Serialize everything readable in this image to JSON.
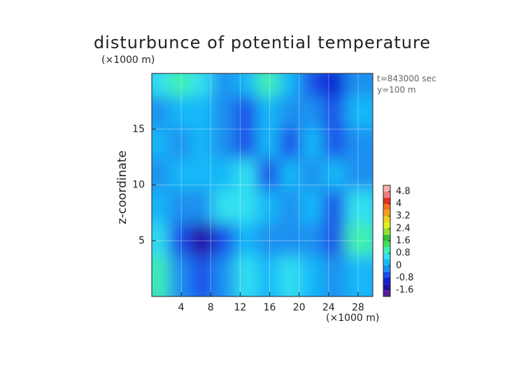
{
  "chart_data": {
    "type": "contour",
    "title": "disturbunce of potential temperature",
    "y_unit": "(×1000 m)",
    "ylabel": "z-coordinate",
    "x_unit": "(×1000 m)",
    "annotations": [
      "t=843000 sec",
      "y=100 m"
    ],
    "xlim": [
      0,
      30
    ],
    "ylim": [
      0,
      20
    ],
    "xticks": [
      4,
      8,
      12,
      16,
      20,
      24,
      28
    ],
    "yticks": [
      5,
      10,
      15
    ],
    "x": [
      1.5,
      4.5,
      7.5,
      10.5,
      13.5,
      16.5,
      19.5,
      22.5,
      25.5,
      28.5
    ],
    "z": [
      18.6,
      15.8,
      13.0,
      10.2,
      7.4,
      4.4,
      1.5
    ],
    "field": [
      [
        0.6,
        1.0,
        0.6,
        -0.2,
        0.2,
        1.0,
        0.2,
        -0.6,
        -1.0,
        -0.2
      ],
      [
        -0.2,
        0.2,
        0.2,
        -0.2,
        -0.6,
        0.2,
        -0.2,
        -0.2,
        -0.6,
        0.2
      ],
      [
        0.2,
        -0.2,
        0.2,
        -0.2,
        -0.6,
        0.2,
        -0.6,
        0.2,
        -0.6,
        -0.2
      ],
      [
        -0.2,
        0.2,
        0.2,
        0.2,
        0.6,
        -0.6,
        0.2,
        -0.2,
        0.2,
        -0.2
      ],
      [
        0.2,
        -0.2,
        -0.2,
        0.6,
        0.6,
        0.2,
        -0.2,
        0.2,
        -0.6,
        0.6
      ],
      [
        0.6,
        -0.6,
        -1.4,
        -0.6,
        0.2,
        -0.2,
        -0.2,
        -0.2,
        -0.6,
        1.0
      ],
      [
        1.0,
        -0.2,
        -0.6,
        -0.2,
        0.6,
        0.2,
        0.6,
        0.2,
        -0.2,
        0.2
      ]
    ],
    "clim": [
      -2,
      5.2
    ],
    "level_step": 0.4,
    "colors": [
      "#5a1a9a",
      "#2010a0",
      "#1020d0",
      "#1a50e8",
      "#1a90f0",
      "#18b8f8",
      "#30e0f0",
      "#40f0b0",
      "#40e060",
      "#30c030",
      "#90e030",
      "#e0f020",
      "#f0d020",
      "#f0a020",
      "#f07020",
      "#e03020",
      "#f08080",
      "#f8b0b0"
    ],
    "colorbar_ticks": [
      -1.6,
      -0.8,
      0,
      0.8,
      1.6,
      2.4,
      3.2,
      4,
      4.8
    ],
    "grid": true
  }
}
